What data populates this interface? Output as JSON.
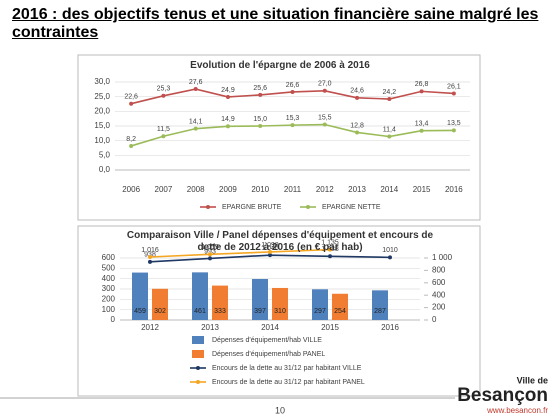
{
  "page_title": "2016 : des objectifs tenus et une situation financière saine malgré les contraintes",
  "chart_data": [
    {
      "type": "line",
      "title": "Evolution de l'épargne de 2006 à 2016",
      "categories": [
        "2006",
        "2007",
        "2008",
        "2009",
        "2010",
        "2011",
        "2012",
        "2013",
        "2014",
        "2015",
        "2016"
      ],
      "series": [
        {
          "name": "EPARGNE BRUTE",
          "color": "#c0504d",
          "values": [
            22.6,
            25.3,
            27.6,
            24.9,
            25.6,
            26.6,
            27.0,
            24.6,
            24.2,
            26.8,
            26.1
          ],
          "value_labels": [
            "22,6",
            "25,3",
            "27,6",
            "24,9",
            "25,6",
            "26,6",
            "27,0",
            "24,6",
            "24,2",
            "26,8",
            "26,1"
          ]
        },
        {
          "name": "EPARGNE NETTE",
          "color": "#9bbb59",
          "values": [
            8.2,
            11.5,
            14.1,
            14.9,
            15.0,
            15.3,
            15.5,
            12.8,
            11.4,
            13.4,
            13.5
          ],
          "value_labels": [
            "8,2",
            "11,5",
            "14,1",
            "14,9",
            "15,0",
            "15,3",
            "15,5",
            "12,8",
            "11,4",
            "13,4",
            "13,5"
          ]
        }
      ],
      "ylim": [
        0,
        30
      ],
      "yticks": [
        {
          "value": 0,
          "label": "0,0"
        },
        {
          "value": 5,
          "label": "5,0"
        },
        {
          "value": 10,
          "label": "10,0"
        },
        {
          "value": 15,
          "label": "15,0"
        },
        {
          "value": 20,
          "label": "20,0"
        },
        {
          "value": 25,
          "label": "25,0"
        },
        {
          "value": 30,
          "label": "30,0"
        }
      ],
      "grid": true
    },
    {
      "type": "bar",
      "title": "Comparaison Ville / Panel dépenses d'équipement et encours de dette de 2012 à 2016 (en € par hab)",
      "categories": [
        "2012",
        "2013",
        "2014",
        "2015",
        "2016"
      ],
      "series": [
        {
          "name": "Dépenses d'équipement/hab  VILLE",
          "color": "#4f81bd",
          "values": [
            459,
            461,
            397,
            297,
            287
          ]
        },
        {
          "name": "Dépenses d'équipement/hab  PANEL",
          "color": "#f07d32",
          "values": [
            302,
            333,
            310,
            254,
            null
          ]
        },
        {
          "name": "Encours de la dette au 31/12 par habitant VILLE",
          "color": "#1f3864",
          "type": "line",
          "axis": "y2",
          "values": [
            938,
            993,
            1046,
            1028,
            1010
          ],
          "value_labels": [
            "938",
            "993",
            "1 046",
            "1 028",
            "1010"
          ]
        },
        {
          "name": "Encours de la dette au 31/12 par habitant PANEL",
          "color": "#f5a623",
          "type": "line",
          "axis": "y2",
          "values": [
            1016,
            1059,
            1098,
            1135,
            null
          ],
          "value_labels": [
            "1 016",
            "1 059",
            "1 098",
            "1 135",
            null
          ]
        }
      ],
      "ylim": [
        0,
        600
      ],
      "yticks": [
        0,
        100,
        200,
        300,
        400,
        500,
        600
      ],
      "y2lim": [
        0,
        1000
      ],
      "y2ticks": [
        0,
        200,
        400,
        600,
        800,
        {
          "value": 1000,
          "label": "1 000"
        }
      ],
      "grid": true
    }
  ],
  "footer": {
    "page_number": "10",
    "logo": {
      "prefix": "Ville de",
      "name": "Besançon",
      "url": "www.besancon.fr"
    }
  }
}
